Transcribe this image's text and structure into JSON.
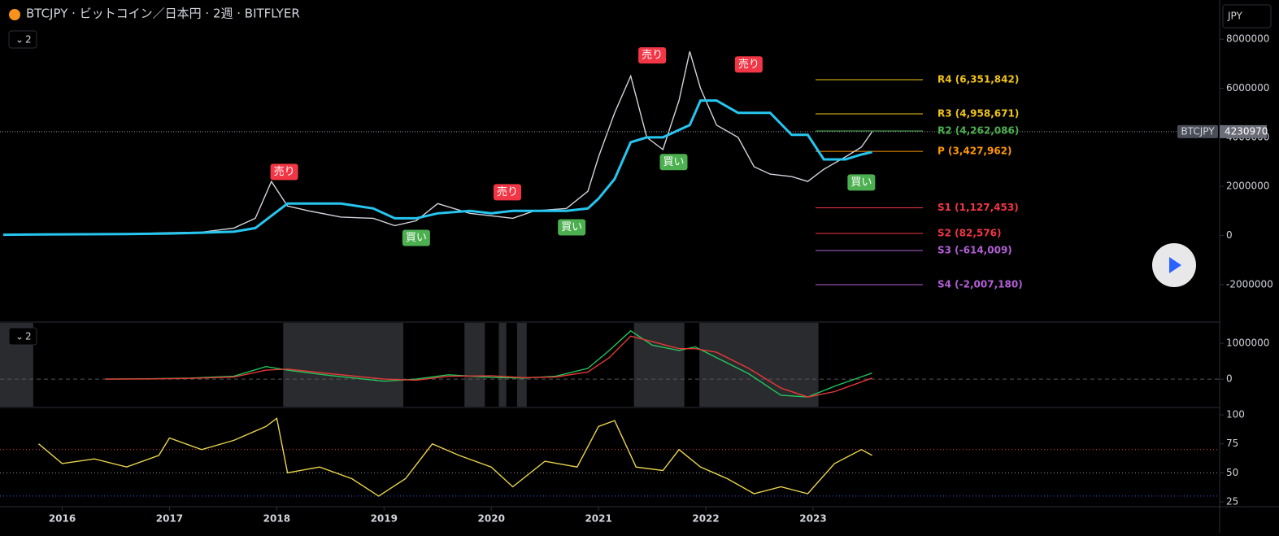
{
  "header": {
    "title": "BTCJPY · ビットコイン／日本円 · 2週 · BITFLYER",
    "currency": "JPY"
  },
  "chart_data": [
    {
      "type": "line",
      "pane_label": "2",
      "xlim": [
        2015.42,
        2026.79
      ],
      "xticks": [
        2016,
        2017,
        2018,
        2019,
        2020,
        2021,
        2022,
        2023
      ],
      "ylim": [
        -3500000,
        9600000
      ],
      "yticks": [
        -2000000,
        0,
        2000000,
        4000000,
        6000000,
        8000000
      ],
      "x": [
        2015.45,
        2015.8,
        2016.2,
        2016.6,
        2017.0,
        2017.3,
        2017.6,
        2017.8,
        2017.95,
        2018.1,
        2018.3,
        2018.6,
        2018.9,
        2019.1,
        2019.3,
        2019.5,
        2019.8,
        2020.0,
        2020.2,
        2020.4,
        2020.7,
        2020.9,
        2021.0,
        2021.15,
        2021.3,
        2021.45,
        2021.6,
        2021.75,
        2021.85,
        2021.95,
        2022.1,
        2022.3,
        2022.45,
        2022.6,
        2022.8,
        2022.95,
        2023.1,
        2023.3,
        2023.45,
        2023.55
      ],
      "series": [
        {
          "color": "#d1d4dc",
          "values": [
            30000,
            45000,
            60000,
            70000,
            110000,
            130000,
            300000,
            700000,
            2200000,
            1200000,
            1000000,
            750000,
            700000,
            400000,
            600000,
            1300000,
            900000,
            800000,
            700000,
            1000000,
            1100000,
            1800000,
            3200000,
            5000000,
            6500000,
            4000000,
            3500000,
            5500000,
            7500000,
            6000000,
            4500000,
            4000000,
            2800000,
            2500000,
            2400000,
            2200000,
            2700000,
            3200000,
            3600000,
            4230970
          ]
        },
        {
          "color": "#26c6f0",
          "values": [
            30000,
            40000,
            50000,
            60000,
            80000,
            110000,
            150000,
            300000,
            800000,
            1300000,
            1300000,
            1300000,
            1100000,
            700000,
            700000,
            900000,
            1000000,
            900000,
            1000000,
            1000000,
            1000000,
            1100000,
            1500000,
            2300000,
            3800000,
            4000000,
            4000000,
            4300000,
            4500000,
            5500000,
            5500000,
            5000000,
            5000000,
            5000000,
            4100000,
            4100000,
            3100000,
            3100000,
            3300000,
            3400000
          ]
        }
      ],
      "pivots": [
        {
          "value": 6351842,
          "label": "R4 (6,351,842)",
          "color": "#f0c419"
        },
        {
          "value": 4958671,
          "label": "R3 (4,958,671)",
          "color": "#f0c419"
        },
        {
          "value": 4262086,
          "label": "R2 (4,262,086)",
          "color": "#4caf50"
        },
        {
          "value": 3427962,
          "label": "P (3,427,962)",
          "color": "#ff9800"
        },
        {
          "value": 1127453,
          "label": "S1 (1,127,453)",
          "color": "#f23645"
        },
        {
          "value": 82576,
          "label": "S2 (82,576)",
          "color": "#f23645"
        },
        {
          "value": -614009,
          "label": "S3 (-614,009)",
          "color": "#b35fd6"
        },
        {
          "value": -2007180,
          "label": "S4 (-2,007,180)",
          "color": "#b35fd6"
        }
      ],
      "annotations": [
        {
          "text": "売り",
          "x": 2018.07,
          "y": 2590000,
          "color": "#f23645"
        },
        {
          "text": "売り",
          "x": 2020.15,
          "y": 1760000,
          "color": "#f23645"
        },
        {
          "text": "売り",
          "x": 2021.5,
          "y": 7340000,
          "color": "#f23645"
        },
        {
          "text": "売り",
          "x": 2022.4,
          "y": 6970000,
          "color": "#f23645"
        },
        {
          "text": "買い",
          "x": 2019.3,
          "y": -100000,
          "color": "#4caf50"
        },
        {
          "text": "買い",
          "x": 2020.75,
          "y": 330000,
          "color": "#4caf50"
        },
        {
          "text": "買い",
          "x": 2021.7,
          "y": 2990000,
          "color": "#4caf50"
        },
        {
          "text": "買い",
          "x": 2023.45,
          "y": 2160000,
          "color": "#4caf50"
        }
      ],
      "last_price": {
        "symbol": "BTCJPY",
        "value": 4230970
      }
    },
    {
      "type": "line",
      "pane_label": "2",
      "xlim": [
        2015.42,
        2026.79
      ],
      "ylim": [
        -770000,
        1570000
      ],
      "yticks": [
        0,
        1000000
      ],
      "regions": [
        [
          2015.42,
          2015.73
        ],
        [
          2018.06,
          2019.18
        ],
        [
          2019.75,
          2019.94
        ],
        [
          2020.07,
          2020.14
        ],
        [
          2020.24,
          2020.33
        ],
        [
          2021.33,
          2021.8
        ],
        [
          2021.94,
          2023.05
        ]
      ],
      "x": [
        2016.4,
        2016.8,
        2017.2,
        2017.6,
        2017.9,
        2018.1,
        2018.5,
        2019.0,
        2019.3,
        2019.6,
        2020.0,
        2020.3,
        2020.6,
        2020.9,
        2021.1,
        2021.3,
        2021.5,
        2021.75,
        2021.9,
        2022.1,
        2022.4,
        2022.7,
        2022.95,
        2023.2,
        2023.55
      ],
      "series": [
        {
          "color": "#22c55e",
          "values": [
            0,
            10000,
            30000,
            80000,
            350000,
            250000,
            100000,
            -60000,
            0,
            120000,
            50000,
            30000,
            80000,
            300000,
            800000,
            1350000,
            950000,
            800000,
            900000,
            600000,
            150000,
            -450000,
            -500000,
            -200000,
            170000
          ]
        },
        {
          "color": "#e53935",
          "values": [
            0,
            5000,
            20000,
            60000,
            250000,
            280000,
            150000,
            0,
            -30000,
            80000,
            90000,
            40000,
            60000,
            200000,
            600000,
            1200000,
            1050000,
            850000,
            850000,
            750000,
            300000,
            -250000,
            -500000,
            -350000,
            30000
          ]
        }
      ]
    },
    {
      "type": "line",
      "xlim": [
        2015.42,
        2026.79
      ],
      "ylim": [
        21.5,
        105.6
      ],
      "yticks": [
        25,
        50,
        75,
        100
      ],
      "levels": [
        {
          "value": 70,
          "color": "#f23645"
        },
        {
          "value": 50,
          "color": "#9598a1"
        },
        {
          "value": 30,
          "color": "#2962ff"
        }
      ],
      "x": [
        2015.78,
        2016.0,
        2016.3,
        2016.6,
        2016.9,
        2017.0,
        2017.3,
        2017.6,
        2017.9,
        2018.0,
        2018.1,
        2018.4,
        2018.7,
        2018.95,
        2019.2,
        2019.45,
        2019.7,
        2020.0,
        2020.2,
        2020.5,
        2020.8,
        2021.0,
        2021.15,
        2021.35,
        2021.6,
        2021.75,
        2021.95,
        2022.2,
        2022.45,
        2022.7,
        2022.95,
        2023.2,
        2023.45,
        2023.55
      ],
      "series": [
        {
          "color": "#e8d44d",
          "values": [
            75,
            58,
            62,
            55,
            65,
            80,
            70,
            78,
            90,
            97,
            50,
            55,
            45,
            30,
            45,
            75,
            65,
            55,
            38,
            60,
            55,
            90,
            95,
            55,
            52,
            70,
            55,
            45,
            32,
            38,
            32,
            58,
            70,
            65
          ]
        }
      ]
    }
  ]
}
